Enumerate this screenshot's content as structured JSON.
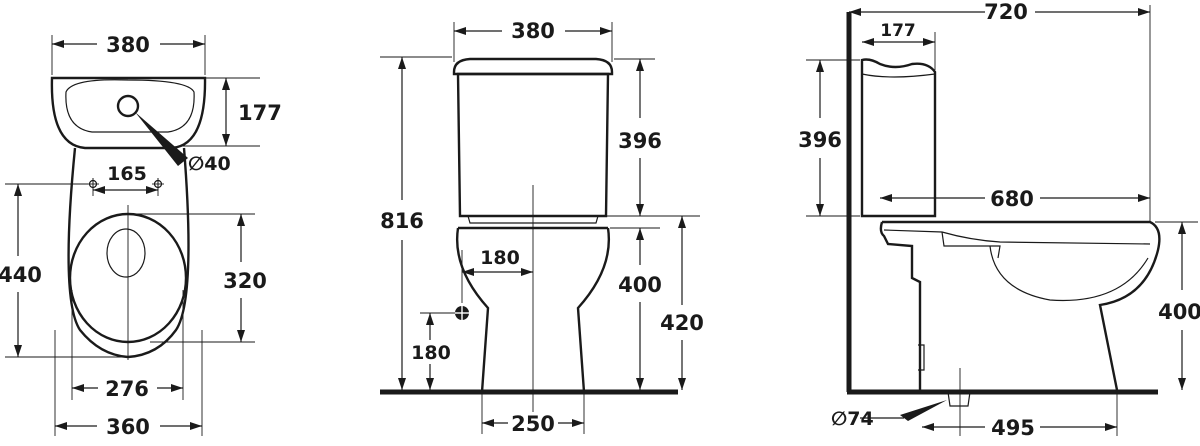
{
  "plan_view": {
    "width_top": "380",
    "bowl_depth": "177",
    "hole_diameter": "∅40",
    "hole_spacing": "165",
    "overall_length": "440",
    "seat_length": "320",
    "seat_width": "276",
    "base_width": "360"
  },
  "front_view": {
    "tank_width": "380",
    "overall_height": "816",
    "tank_height": "396",
    "inlet_offset": "180",
    "bowl_height": "400",
    "rim_height": "420",
    "inlet_height": "180",
    "foot_width": "250"
  },
  "side_view": {
    "overall_depth": "720",
    "tank_depth": "177",
    "tank_height": "396",
    "seat_depth": "680",
    "bowl_height": "400",
    "outlet_diameter": "∅74",
    "outlet_distance": "495"
  }
}
